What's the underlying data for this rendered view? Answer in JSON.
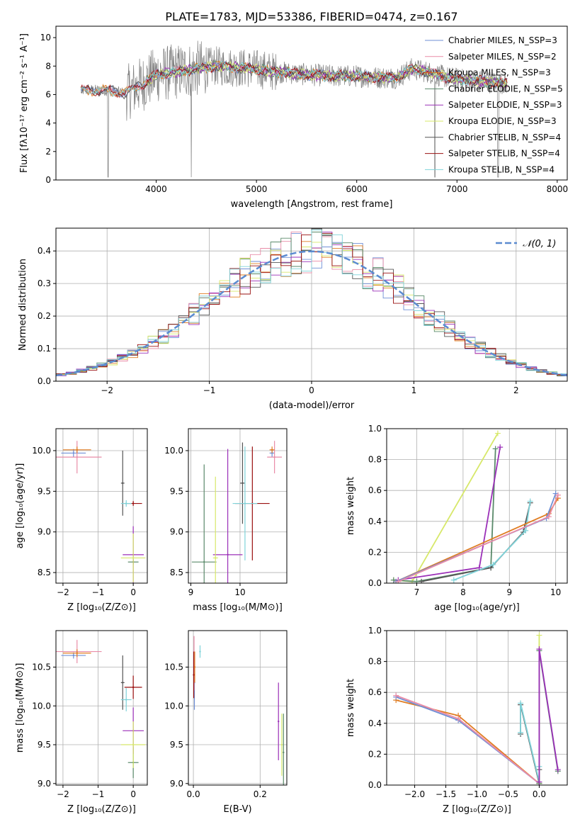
{
  "figure_title": "PLATE=1783, MJD=53386, FIBERID=0474, z=0.167",
  "colors": {
    "chabrier_miles": "#6f8fd6",
    "salpeter_miles": "#e98ca7",
    "kroupa_miles": "#e07d22",
    "chabrier_elodie": "#5a8a6a",
    "salpeter_elodie": "#9b30b8",
    "kroupa_elodie": "#d7e86a",
    "chabrier_stelib": "#555555",
    "salpeter_stelib": "#9a1010",
    "kroupa_stelib": "#7fd3d9",
    "data": "#808080",
    "normal": "#5b8bd0"
  },
  "chart_data": [
    {
      "id": "spectrum",
      "type": "line",
      "title": "PLATE=1783, MJD=53386, FIBERID=0474, z=0.167",
      "xlabel": "wavelength [Angstrom, rest frame]",
      "ylabel": "Flux [fλ10⁻¹⁷ erg cm⁻² s⁻¹ A⁻¹]",
      "xlim": [
        3000,
        8100
      ],
      "ylim": [
        0,
        10.8
      ],
      "xticks": [
        4000,
        5000,
        6000,
        7000,
        8000
      ],
      "yticks": [
        0,
        2,
        4,
        6,
        8,
        10
      ],
      "grid": false,
      "legend_position": "top-right",
      "legend": [
        {
          "label": "Chabrier MILES, N_SSP=3",
          "color_key": "chabrier_miles"
        },
        {
          "label": "Salpeter MILES, N_SSP=2",
          "color_key": "salpeter_miles"
        },
        {
          "label": "Kroupa MILES, N_SSP=3",
          "color_key": "kroupa_miles"
        },
        {
          "label": "Chabrier ELODIE, N_SSP=5",
          "color_key": "chabrier_elodie"
        },
        {
          "label": "Salpeter ELODIE, N_SSP=3",
          "color_key": "salpeter_elodie"
        },
        {
          "label": "Kroupa ELODIE, N_SSP=3",
          "color_key": "kroupa_elodie"
        },
        {
          "label": "Chabrier STELIB, N_SSP=4",
          "color_key": "chabrier_stelib"
        },
        {
          "label": "Salpeter STELIB, N_SSP=4",
          "color_key": "salpeter_stelib"
        },
        {
          "label": "Kroupa STELIB, N_SSP=4",
          "color_key": "kroupa_stelib"
        }
      ],
      "continuum": [
        [
          3250,
          6.3
        ],
        [
          3500,
          6.3
        ],
        [
          3700,
          6.1
        ],
        [
          3850,
          6.7
        ],
        [
          4000,
          7.4
        ],
        [
          4200,
          7.6
        ],
        [
          4400,
          7.8
        ],
        [
          4600,
          8.0
        ],
        [
          4800,
          7.9
        ],
        [
          5000,
          7.8
        ],
        [
          5200,
          7.6
        ],
        [
          5500,
          7.4
        ],
        [
          5800,
          7.3
        ],
        [
          6000,
          7.3
        ],
        [
          6200,
          7.2
        ],
        [
          6400,
          7.2
        ],
        [
          6550,
          7.8
        ],
        [
          6700,
          7.6
        ],
        [
          6900,
          7.2
        ],
        [
          7100,
          7.0
        ],
        [
          7300,
          6.9
        ],
        [
          7500,
          6.8
        ]
      ]
    },
    {
      "id": "residuals",
      "type": "line",
      "xlabel": "(data-model)/error",
      "ylabel": "Normed distribution",
      "xlim": [
        -2.5,
        2.5
      ],
      "ylim": [
        0,
        0.47
      ],
      "xticks": [
        -2,
        -1,
        0,
        1,
        2
      ],
      "yticks": [
        0.0,
        0.1,
        0.2,
        0.3,
        0.4
      ],
      "grid": true,
      "legend_position": "top-right",
      "legend": [
        {
          "label": "𝒩(0, 1)",
          "color_key": "normal",
          "style": "dashed"
        }
      ],
      "normal": {
        "mean": 0,
        "sigma": 1
      }
    },
    {
      "id": "age-vs-Z",
      "type": "scatter",
      "xlabel": "Z [log₁₀(Z/Z⊙)]",
      "ylabel": "age  [log₁₀(age/yr)]",
      "xlim": [
        -2.2,
        0.4
      ],
      "ylim": [
        8.37,
        10.27
      ],
      "xticks": [
        -2,
        -1,
        0
      ],
      "yticks": [
        8.5,
        9.0,
        9.5,
        10.0
      ],
      "grid": true,
      "points": [
        {
          "c": "chabrier_miles",
          "x": -1.7,
          "xe": 0.35,
          "y": 9.97,
          "ye": 0.05
        },
        {
          "c": "salpeter_miles",
          "x": -1.6,
          "xe": 0.7,
          "y": 9.92,
          "ye": 0.2
        },
        {
          "c": "kroupa_miles",
          "x": -1.6,
          "xe": 0.4,
          "y": 10.01,
          "ye": 0.04
        },
        {
          "c": "chabrier_elodie",
          "x": 0.0,
          "xe": 0.15,
          "y": 8.63,
          "ye": 0.03
        },
        {
          "c": "salpeter_elodie",
          "x": 0.0,
          "xe": 0.3,
          "y": 8.72,
          "ye": 0.35
        },
        {
          "c": "kroupa_elodie",
          "x": 0.0,
          "xe": 0.35,
          "y": 8.68,
          "ye": 0.3
        },
        {
          "c": "chabrier_stelib",
          "x": -0.3,
          "xe": 0.05,
          "y": 9.6,
          "ye": 0.4
        },
        {
          "c": "salpeter_stelib",
          "x": 0.0,
          "xe": 0.25,
          "y": 9.35,
          "ye": 0.03
        },
        {
          "c": "kroupa_stelib",
          "x": -0.2,
          "xe": 0.15,
          "y": 9.35,
          "ye": 0.04
        }
      ]
    },
    {
      "id": "age-vs-mass",
      "type": "scatter",
      "xlabel": "mass [log₁₀(M/M⊙)]",
      "ylabel": "",
      "xlim": [
        8.95,
        10.95
      ],
      "ylim": [
        8.37,
        10.27
      ],
      "xticks": [
        9,
        10
      ],
      "yticks": [
        8.5,
        9.0,
        9.5,
        10.0
      ],
      "grid": true,
      "points": [
        {
          "c": "chabrier_miles",
          "x": 10.65,
          "xe": 0.05,
          "y": 9.97,
          "ye": 0.05
        },
        {
          "c": "salpeter_miles",
          "x": 10.7,
          "xe": 0.15,
          "y": 9.92,
          "ye": 0.2
        },
        {
          "c": "kroupa_miles",
          "x": 10.65,
          "xe": 0.05,
          "y": 10.01,
          "ye": 0.04
        },
        {
          "c": "chabrier_elodie",
          "x": 9.27,
          "xe": 0.25,
          "y": 8.63,
          "ye": 1.2
        },
        {
          "c": "salpeter_elodie",
          "x": 9.75,
          "xe": 0.3,
          "y": 8.72,
          "ye": 1.3
        },
        {
          "c": "kroupa_elodie",
          "x": 9.5,
          "xe": 0.05,
          "y": 8.68,
          "ye": 1.0
        },
        {
          "c": "chabrier_stelib",
          "x": 10.05,
          "xe": 0.05,
          "y": 9.6,
          "ye": 0.5
        },
        {
          "c": "salpeter_stelib",
          "x": 10.25,
          "xe": 0.35,
          "y": 9.35,
          "ye": 0.7
        },
        {
          "c": "kroupa_stelib",
          "x": 10.1,
          "xe": 0.25,
          "y": 9.35,
          "ye": 0.7
        }
      ]
    },
    {
      "id": "weight-vs-age",
      "type": "line",
      "xlabel": "age  [log₁₀(age/yr)]",
      "ylabel": "mass weight",
      "xlim": [
        6.35,
        10.25
      ],
      "ylim": [
        0,
        1.0
      ],
      "xticks": [
        7,
        8,
        9,
        10
      ],
      "yticks": [
        0.0,
        0.2,
        0.4,
        0.6,
        0.8,
        1.0
      ],
      "grid": true,
      "series": [
        {
          "c": "kroupa_elodie",
          "x": [
            6.5,
            6.9,
            8.75
          ],
          "y": [
            0.02,
            0.01,
            0.97
          ]
        },
        {
          "c": "chabrier_elodie",
          "x": [
            6.5,
            7.0,
            8.6,
            8.7
          ],
          "y": [
            0.02,
            0.01,
            0.1,
            0.87
          ]
        },
        {
          "c": "chabrier_stelib",
          "x": [
            7.1,
            8.6,
            9.3,
            9.45
          ],
          "y": [
            0.01,
            0.1,
            0.33,
            0.52
          ]
        },
        {
          "c": "kroupa_stelib",
          "x": [
            7.8,
            8.65,
            9.35,
            9.45
          ],
          "y": [
            0.02,
            0.12,
            0.34,
            0.53
          ]
        },
        {
          "c": "salpeter_elodie",
          "x": [
            6.6,
            8.35,
            8.8
          ],
          "y": [
            0.02,
            0.1,
            0.88
          ]
        },
        {
          "c": "kroupa_miles",
          "x": [
            6.55,
            9.85,
            10.05
          ],
          "y": [
            0.01,
            0.45,
            0.55
          ]
        },
        {
          "c": "chabrier_miles",
          "x": [
            6.55,
            9.8,
            10.0
          ],
          "y": [
            0.01,
            0.42,
            0.58
          ]
        },
        {
          "c": "salpeter_miles",
          "x": [
            6.6,
            9.85,
            10.05
          ],
          "y": [
            0.01,
            0.43,
            0.57
          ]
        }
      ]
    },
    {
      "id": "mass-vs-Z",
      "type": "scatter",
      "xlabel": "Z [log₁₀(Z/Z⊙)]",
      "ylabel": "mass [log₁₀(M/M⊙)]",
      "xlim": [
        -2.2,
        0.4
      ],
      "ylim": [
        8.98,
        10.97
      ],
      "xticks": [
        -2,
        -1,
        0
      ],
      "yticks": [
        9.0,
        9.5,
        10.0,
        10.5
      ],
      "grid": true,
      "points": [
        {
          "c": "chabrier_miles",
          "x": -1.7,
          "xe": 0.35,
          "y": 10.65,
          "ye": 0.04
        },
        {
          "c": "salpeter_miles",
          "x": -1.6,
          "xe": 0.7,
          "y": 10.7,
          "ye": 0.15
        },
        {
          "c": "kroupa_miles",
          "x": -1.6,
          "xe": 0.4,
          "y": 10.68,
          "ye": 0.05
        },
        {
          "c": "chabrier_elodie",
          "x": 0.0,
          "xe": 0.15,
          "y": 9.27,
          "ye": 0.2
        },
        {
          "c": "salpeter_elodie",
          "x": 0.0,
          "xe": 0.3,
          "y": 9.68,
          "ye": 0.3
        },
        {
          "c": "kroupa_elodie",
          "x": 0.0,
          "xe": 0.35,
          "y": 9.5,
          "ye": 0.3
        },
        {
          "c": "chabrier_stelib",
          "x": -0.3,
          "xe": 0.05,
          "y": 10.3,
          "ye": 0.35
        },
        {
          "c": "salpeter_stelib",
          "x": 0.0,
          "xe": 0.25,
          "y": 10.24,
          "ye": 0.15
        },
        {
          "c": "kroupa_stelib",
          "x": -0.2,
          "xe": 0.15,
          "y": 10.08,
          "ye": 0.15
        }
      ]
    },
    {
      "id": "mass-vs-ebv",
      "type": "scatter",
      "xlabel": "E(B-V)",
      "ylabel": "",
      "xlim": [
        -0.015,
        0.28
      ],
      "ylim": [
        8.98,
        10.97
      ],
      "xticks": [
        0.0,
        0.2
      ],
      "yticks": [
        9.0,
        9.5,
        10.0,
        10.5
      ],
      "grid": true,
      "points": [
        {
          "c": "chabrier_miles",
          "x": 0.003,
          "y": 10.3,
          "ye": 0.35
        },
        {
          "c": "salpeter_miles",
          "x": 0.002,
          "y": 10.55,
          "ye": 0.35
        },
        {
          "c": "kroupa_miles",
          "x": 0.004,
          "y": 10.5,
          "ye": 0.2
        },
        {
          "c": "kroupa_stelib",
          "x": 0.02,
          "y": 10.7,
          "ye": 0.08
        },
        {
          "c": "salpeter_stelib",
          "x": 0.001,
          "y": 10.4,
          "ye": 0.3
        },
        {
          "c": "salpeter_elodie",
          "x": 0.255,
          "y": 9.8,
          "ye": 0.5
        },
        {
          "c": "kroupa_elodie",
          "x": 0.265,
          "y": 9.5,
          "ye": 0.4
        },
        {
          "c": "chabrier_elodie",
          "x": 0.27,
          "y": 9.4,
          "ye": 0.5
        }
      ]
    },
    {
      "id": "weight-vs-Z",
      "type": "line",
      "xlabel": "Z [log₁₀(Z/Z⊙)]",
      "ylabel": "mass weight",
      "xlim": [
        -2.45,
        0.45
      ],
      "ylim": [
        0,
        1.0
      ],
      "xticks": [
        -2.0,
        -1.5,
        -1.0,
        -0.5,
        0.0
      ],
      "yticks": [
        0.0,
        0.2,
        0.4,
        0.6,
        0.8,
        1.0
      ],
      "grid": true,
      "series": [
        {
          "c": "kroupa_miles",
          "x": [
            -2.3,
            -1.3,
            0.0
          ],
          "y": [
            0.55,
            0.45,
            0.01
          ]
        },
        {
          "c": "chabrier_miles",
          "x": [
            -2.3,
            -1.3,
            0.0
          ],
          "y": [
            0.57,
            0.42,
            0.01
          ]
        },
        {
          "c": "salpeter_miles",
          "x": [
            -2.3,
            -1.3,
            0.0
          ],
          "y": [
            0.58,
            0.43,
            0.01
          ]
        },
        {
          "c": "chabrier_stelib",
          "x": [
            -0.3,
            -0.3,
            0.0,
            0.0
          ],
          "y": [
            0.33,
            0.52,
            0.01,
            0.1
          ]
        },
        {
          "c": "kroupa_stelib",
          "x": [
            -0.3,
            -0.3,
            0.0,
            0.0
          ],
          "y": [
            0.34,
            0.53,
            0.02,
            0.12
          ]
        },
        {
          "c": "kroupa_elodie",
          "x": [
            0.0,
            0.0,
            0.0
          ],
          "y": [
            0.01,
            0.02,
            0.97
          ]
        },
        {
          "c": "chabrier_elodie",
          "x": [
            0.0,
            0.0,
            0.3
          ],
          "y": [
            0.01,
            0.87,
            0.09
          ]
        },
        {
          "c": "salpeter_elodie",
          "x": [
            0.0,
            0.0,
            0.3
          ],
          "y": [
            0.02,
            0.88,
            0.1
          ]
        }
      ]
    }
  ]
}
